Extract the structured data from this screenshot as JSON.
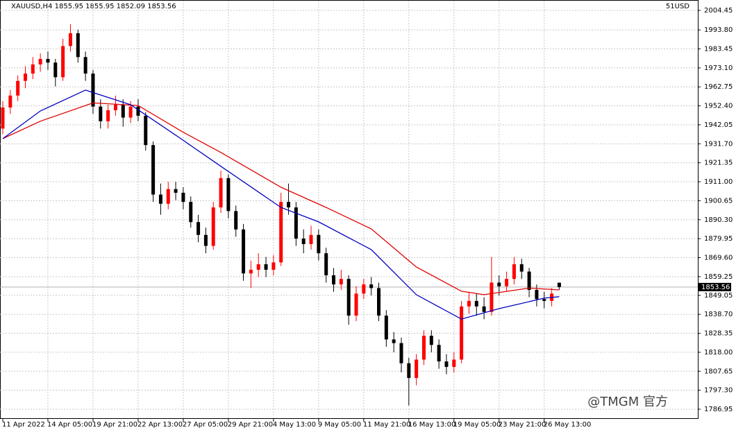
{
  "chart_data": {
    "type": "candlestick",
    "title": "XAUUSD,H4  1855.95 1855.95 1852.09 1853.56",
    "account_label": "51USD",
    "last_price_label": "1853.56",
    "last_price": 1853.56,
    "watermark": "@TMGM 官方",
    "up_color": "#ff0000",
    "down_color": "#000000",
    "grid": true,
    "ylim": [
      1786.95,
      2004.45
    ],
    "yticks": [
      2004.45,
      {
        "value": 1993.8,
        "label": "1993.80"
      },
      1983.45,
      {
        "value": 1973.1,
        "label": "1973.10"
      },
      1962.75,
      {
        "value": 1952.4,
        "label": "1952.40"
      },
      1942.05,
      {
        "value": 1931.7,
        "label": "1931.70"
      },
      1921.35,
      {
        "value": 1911,
        "label": "1911.00"
      },
      1900.65,
      {
        "value": 1890.3,
        "label": "1890.30"
      },
      1879.95,
      {
        "value": 1869.6,
        "label": "1869.60"
      },
      1859.25,
      1849.05,
      {
        "value": 1838.7,
        "label": "1838.70"
      },
      1828.35,
      {
        "value": 1818,
        "label": "1818.00"
      },
      1807.65,
      {
        "value": 1797.3,
        "label": "1797.30"
      },
      1786.95
    ],
    "xticks": [
      {
        "value": 0,
        "label": "11 Apr 2022"
      },
      {
        "value": 6,
        "label": "14 Apr 05:00"
      },
      {
        "value": 12,
        "label": "19 Apr 21:00"
      },
      {
        "value": 18,
        "label": "22 Apr 13:00"
      },
      {
        "value": 24,
        "label": "27 Apr 05:00"
      },
      {
        "value": 30,
        "label": "29 Apr 21:00"
      },
      {
        "value": 36,
        "label": "4 May 13:00"
      },
      {
        "value": 42,
        "label": "9 May 05:00"
      },
      {
        "value": 48,
        "label": "11 May 21:00"
      },
      {
        "value": 54,
        "label": "16 May 13:00"
      },
      {
        "value": 60,
        "label": "19 May 05:00"
      },
      {
        "value": 66,
        "label": "23 May 21:00"
      },
      {
        "value": 72,
        "label": "26 May 13:00"
      }
    ],
    "open": [
      1940,
      1951.5,
      1958,
      1966,
      1970,
      1975,
      1978,
      1976,
      1968,
      1985,
      1992,
      1979,
      1970,
      1952,
      1944,
      1950,
      1953,
      1946,
      1952,
      1947,
      1931,
      1904,
      1899,
      1907,
      1905,
      1900,
      1889,
      1882,
      1876,
      1897,
      1913,
      1895,
      1885,
      1861,
      1863,
      1866,
      1863,
      1867,
      1900,
      1897,
      1880,
      1877,
      1882,
      1872,
      1860,
      1855,
      1858,
      1838,
      1850,
      1855,
      1853,
      1838,
      1825,
      1823,
      1812,
      1804,
      1814,
      1827,
      1822,
      1813,
      1810,
      1814,
      1843,
      1846,
      1843,
      1840,
      1856,
      1854,
      1858,
      1866,
      1862,
      1852,
      1847,
      1846,
      1855.95
    ],
    "high": [
      1955,
      1961,
      1969,
      1974,
      1979,
      1981,
      1982,
      1978,
      1989,
      1997,
      1994,
      1982,
      1972,
      1956,
      1953,
      1958,
      1956,
      1955,
      1956,
      1949,
      1933,
      1910,
      1911,
      1911,
      1908,
      1903,
      1893,
      1886,
      1900,
      1917,
      1915,
      1898,
      1888,
      1868,
      1872,
      1870,
      1871,
      1905,
      1910,
      1900,
      1885,
      1887,
      1885,
      1875,
      1864,
      1863,
      1860,
      1854,
      1858,
      1859,
      1856,
      1841,
      1829,
      1826,
      1815,
      1817,
      1830,
      1830,
      1825,
      1817,
      1818,
      1846,
      1851,
      1850,
      1848,
      1870,
      1860,
      1862,
      1870,
      1869,
      1864,
      1855,
      1851,
      1853,
      1855.95
    ],
    "low": [
      1937,
      1948,
      1955,
      1962,
      1967,
      1971,
      1972,
      1963,
      1966,
      1982,
      1976,
      1966,
      1948,
      1940,
      1940,
      1947,
      1941,
      1943,
      1944,
      1928,
      1900,
      1893,
      1896,
      1901,
      1896,
      1886,
      1878,
      1872,
      1874,
      1894,
      1891,
      1881,
      1857,
      1853,
      1859,
      1859,
      1860,
      1865,
      1893,
      1876,
      1872,
      1874,
      1868,
      1856,
      1851,
      1852,
      1833,
      1835,
      1847,
      1849,
      1835,
      1821,
      1818,
      1807,
      1789,
      1800,
      1811,
      1818,
      1809,
      1806,
      1807,
      1812,
      1839,
      1838,
      1836,
      1838,
      1849,
      1851,
      1855,
      1858,
      1848,
      1843,
      1842,
      1843,
      1852.09
    ],
    "close": [
      1951.5,
      1958,
      1966,
      1970,
      1975,
      1978,
      1976,
      1968,
      1985,
      1992,
      1979,
      1970,
      1952,
      1944,
      1950,
      1953,
      1946,
      1952,
      1947,
      1931,
      1904,
      1899,
      1907,
      1905,
      1900,
      1889,
      1882,
      1876,
      1897,
      1913,
      1895,
      1885,
      1861,
      1863,
      1866,
      1863,
      1867,
      1900,
      1897,
      1880,
      1877,
      1882,
      1872,
      1860,
      1855,
      1858,
      1838,
      1850,
      1855,
      1853,
      1838,
      1825,
      1823,
      1812,
      1804,
      1814,
      1827,
      1822,
      1813,
      1810,
      1814,
      1843,
      1846,
      1843,
      1840,
      1856,
      1854,
      1858,
      1866,
      1862,
      1852,
      1847,
      1846,
      1850,
      1853.56
    ],
    "series": [
      {
        "color": "#e00000",
        "x": [
          0,
          5,
          12,
          18,
          24,
          29,
          37,
          43,
          49,
          55,
          61,
          64,
          70,
          74
        ],
        "values": [
          1934.5,
          1944,
          1954,
          1952.6,
          1938,
          1927,
          1908,
          1897,
          1885.3,
          1864.5,
          1851.3,
          1849.4,
          1853,
          1852
        ]
      },
      {
        "color": "#0000c0",
        "x": [
          0,
          5,
          11,
          17,
          23,
          29,
          37,
          42,
          49,
          55,
          61,
          66,
          72,
          74
        ],
        "values": [
          1934.5,
          1949.6,
          1961,
          1953,
          1936.4,
          1919.4,
          1897,
          1889.1,
          1874,
          1849.4,
          1836.1,
          1841.8,
          1847.5,
          1848.3
        ]
      }
    ]
  }
}
